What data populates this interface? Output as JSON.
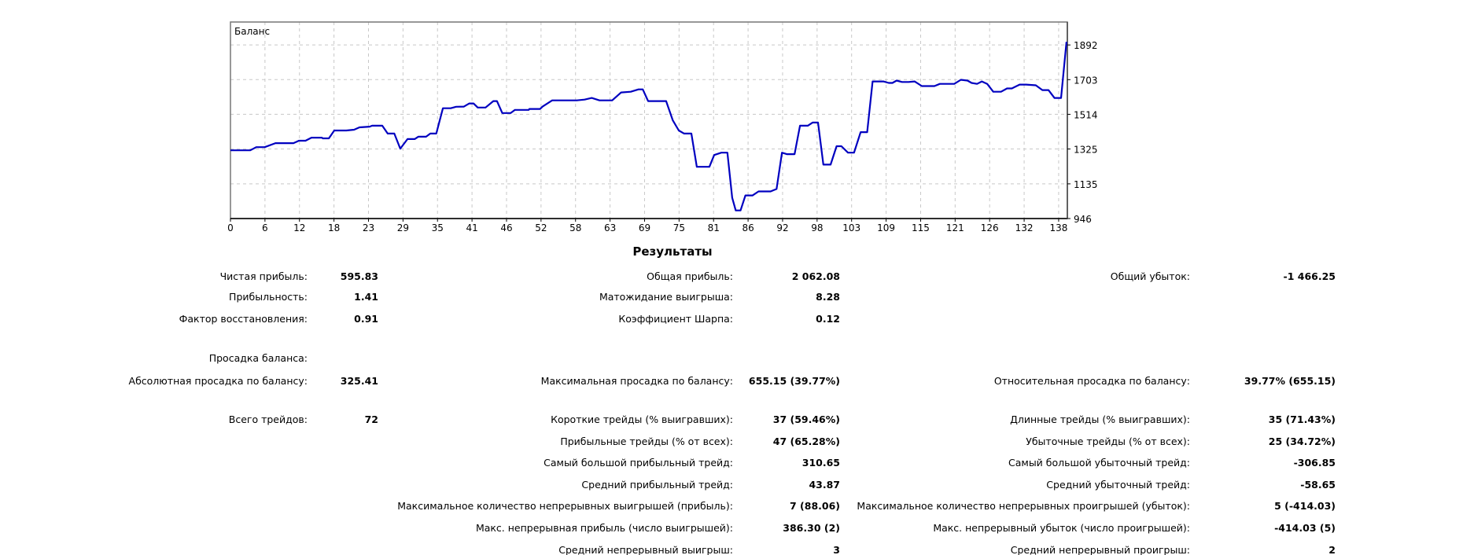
{
  "chart_data": {
    "type": "line",
    "title": "Баланс",
    "xlabel": "",
    "ylabel": "",
    "xlim": [
      0,
      139.5
    ],
    "ylim": [
      946,
      2017
    ],
    "x_ticks": [
      "0",
      "6",
      "12",
      "18",
      "23",
      "29",
      "35",
      "41",
      "46",
      "52",
      "58",
      "63",
      "69",
      "75",
      "81",
      "86",
      "92",
      "98",
      "103",
      "109",
      "115",
      "121",
      "126",
      "132",
      "138"
    ],
    "y_ticks": [
      946,
      1135,
      1325,
      1514,
      1703,
      1892
    ],
    "grid": true,
    "line_color": "#0000c0",
    "series": [
      {
        "name": "Баланс",
        "x": [
          0,
          3.3,
          4.3,
          5.7,
          7.5,
          10.5,
          11.4,
          12.5,
          13.5,
          15.2,
          15.4,
          16.4,
          17.3,
          19.3,
          20.6,
          21.5,
          23.2,
          23.6,
          25.3,
          26.2,
          27.3,
          28.3,
          29.5,
          30.7,
          31.3,
          32.6,
          33.3,
          34.3,
          35.4,
          36.7,
          37.6,
          38.9,
          39.8,
          40.5,
          41.2,
          42.5,
          43.8,
          44.4,
          45.3,
          46.7,
          47.4,
          49.7,
          49.8,
          51.6,
          52,
          53.6,
          57.7,
          59,
          60.2,
          61.5,
          63.6,
          65.1,
          66.7,
          68,
          68.7,
          69.6,
          72.6,
          73.7,
          74.7,
          75.6,
          76.8,
          77.7,
          79.8,
          80.6,
          81.8,
          82.8,
          83.6,
          84.2,
          85,
          85.8,
          87,
          88,
          89,
          90,
          91,
          91.9,
          92.7,
          94,
          94.9,
          96.2,
          97,
          97.9,
          98.8,
          100,
          101,
          101.8,
          102.9,
          103.9,
          105,
          106.1,
          107,
          108.8,
          109.7,
          110.3,
          111,
          111.9,
          113,
          114,
          115.2,
          117.3,
          118.2,
          120.6,
          121.7,
          122.8,
          123.5,
          124.4,
          125.2,
          126.1,
          127.1,
          128.4,
          129.4,
          130.2,
          131.5,
          132.6,
          134.2,
          135.3,
          136.3,
          137.3,
          138.4,
          139.3
        ],
        "y": [
          1318,
          1318,
          1335,
          1335,
          1357,
          1357,
          1370,
          1370,
          1387,
          1387,
          1383,
          1383,
          1426,
          1426,
          1430,
          1443,
          1447,
          1452,
          1452,
          1409,
          1409,
          1327,
          1379,
          1379,
          1392,
          1392,
          1409,
          1409,
          1547,
          1547,
          1555,
          1556,
          1573,
          1573,
          1551,
          1551,
          1586,
          1586,
          1521,
          1521,
          1538,
          1538,
          1543,
          1543,
          1556,
          1590,
          1590,
          1594,
          1603,
          1590,
          1590,
          1633,
          1637,
          1650,
          1650,
          1586,
          1586,
          1482,
          1426,
          1409,
          1409,
          1228,
          1228,
          1292,
          1305,
          1305,
          1059,
          990,
          990,
          1072,
          1072,
          1094,
          1094,
          1094,
          1107,
          1305,
          1297,
          1297,
          1452,
          1452,
          1469,
          1469,
          1240,
          1240,
          1340,
          1340,
          1305,
          1305,
          1417,
          1417,
          1693,
          1693,
          1685,
          1685,
          1698,
          1690,
          1690,
          1693,
          1668,
          1668,
          1680,
          1680,
          1702,
          1698,
          1685,
          1680,
          1693,
          1680,
          1637,
          1637,
          1655,
          1655,
          1676,
          1676,
          1672,
          1646,
          1646,
          1603,
          1603,
          1909
        ]
      }
    ]
  },
  "results": {
    "title": "Результаты",
    "col1": [
      {
        "label": "Чистая прибыль:",
        "value": "595.83"
      },
      {
        "label": "Прибыльность:",
        "value": "1.41"
      },
      {
        "label": "Фактор восстановления:",
        "value": "0.91"
      },
      {
        "label": "Просадка баланса:",
        "value": ""
      },
      {
        "label": "Абсолютная просадка по балансу:",
        "value": "325.41"
      },
      {
        "label": "Всего трейдов:",
        "value": "72"
      }
    ],
    "col2": [
      {
        "label": "Общая прибыль:",
        "value": "2 062.08"
      },
      {
        "label": "Матожидание выигрыша:",
        "value": "8.28"
      },
      {
        "label": "Коэффициент Шарпа:",
        "value": "0.12"
      },
      {
        "label": "Максимальная просадка по балансу:",
        "value": "655.15 (39.77%)"
      },
      {
        "label": "Короткие трейды (% выигравших):",
        "value": "37 (59.46%)"
      },
      {
        "label": "Прибыльные трейды (% от всех):",
        "value": "47 (65.28%)"
      },
      {
        "label": "Самый большой прибыльный трейд:",
        "value": "310.65"
      },
      {
        "label": "Средний прибыльный трейд:",
        "value": "43.87"
      },
      {
        "label": "Максимальное количество непрерывных выигрышей (прибыль):",
        "value": "7 (88.06)"
      },
      {
        "label": "Макс. непрерывная прибыль (число выигрышей):",
        "value": "386.30 (2)"
      },
      {
        "label": "Средний непрерывный выигрыш:",
        "value": "3"
      }
    ],
    "col3": [
      {
        "label": "Общий убыток:",
        "value": "-1 466.25"
      },
      {
        "label": "Относительная просадка по балансу:",
        "value": "39.77% (655.15)"
      },
      {
        "label": "Длинные трейды (% выигравших):",
        "value": "35 (71.43%)"
      },
      {
        "label": "Убыточные трейды (% от всех):",
        "value": "25 (34.72%)"
      },
      {
        "label": "Самый большой убыточный трейд:",
        "value": "-306.85"
      },
      {
        "label": "Средний убыточный трейд:",
        "value": "-58.65"
      },
      {
        "label": "Максимальное количество непрерывных проигрышей (убыток):",
        "value": "5 (-414.03)"
      },
      {
        "label": "Макс. непрерывный убыток (число проигрышей):",
        "value": "-414.03 (5)"
      },
      {
        "label": "Средний непрерывный проигрыш:",
        "value": "2"
      }
    ]
  }
}
